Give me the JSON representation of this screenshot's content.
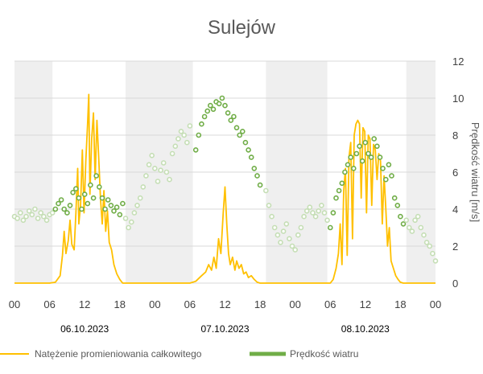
{
  "chart_data": {
    "type": "line",
    "title": "Sulejów",
    "x_tick_labels": [
      "00",
      "06",
      "12",
      "18",
      "00",
      "06",
      "12",
      "18",
      "00",
      "06",
      "12",
      "18",
      "00"
    ],
    "date_labels": [
      "06.10.2023",
      "07.10.2023",
      "08.10.2023"
    ],
    "y2label": "Prędkość wiatru [m/s]",
    "y2lim": [
      0,
      12
    ],
    "y2ticks": [
      "0",
      "2",
      "4",
      "6",
      "8",
      "10",
      "12"
    ],
    "shaded_night_hours": [
      [
        0,
        6.5
      ],
      [
        19,
        30.5
      ],
      [
        43,
        53.5
      ],
      [
        67,
        72
      ]
    ],
    "series": [
      {
        "name": "Natężenie promieniowania całkowitego",
        "kind": "line",
        "color": "#FFC000",
        "axis": "left",
        "ylim": [
          0,
          12
        ],
        "points": [
          [
            0,
            0
          ],
          [
            6,
            0
          ],
          [
            7,
            0.05
          ],
          [
            7.8,
            0.4
          ],
          [
            8.2,
            1.5
          ],
          [
            8.5,
            2.8
          ],
          [
            8.8,
            1.6
          ],
          [
            9.2,
            2.3
          ],
          [
            9.5,
            3.4
          ],
          [
            9.8,
            2.1
          ],
          [
            10.2,
            1.8
          ],
          [
            10.5,
            3.8
          ],
          [
            10.8,
            6.2
          ],
          [
            11,
            3.2
          ],
          [
            11.3,
            4.2
          ],
          [
            11.6,
            7.2
          ],
          [
            11.9,
            3.8
          ],
          [
            12.2,
            6.6
          ],
          [
            12.5,
            8.6
          ],
          [
            12.7,
            10.2
          ],
          [
            12.9,
            4.8
          ],
          [
            13.2,
            7.8
          ],
          [
            13.5,
            9.2
          ],
          [
            13.8,
            5.6
          ],
          [
            14.1,
            8.8
          ],
          [
            14.4,
            6.8
          ],
          [
            14.7,
            4.6
          ],
          [
            15,
            3.2
          ],
          [
            15.3,
            5.0
          ],
          [
            15.6,
            2.8
          ],
          [
            15.9,
            3.9
          ],
          [
            16.2,
            2.2
          ],
          [
            16.6,
            1.8
          ],
          [
            17,
            1.0
          ],
          [
            17.5,
            0.5
          ],
          [
            18,
            0.2
          ],
          [
            18.5,
            0
          ],
          [
            30,
            0
          ],
          [
            31,
            0.1
          ],
          [
            32,
            0.4
          ],
          [
            32.7,
            0.6
          ],
          [
            33.2,
            1.0
          ],
          [
            33.7,
            0.7
          ],
          [
            34.1,
            1.4
          ],
          [
            34.5,
            0.8
          ],
          [
            34.9,
            2.4
          ],
          [
            35.3,
            1.6
          ],
          [
            35.7,
            3.8
          ],
          [
            36,
            5.2
          ],
          [
            36.3,
            3.2
          ],
          [
            36.6,
            1.6
          ],
          [
            36.9,
            1.0
          ],
          [
            37.3,
            1.4
          ],
          [
            37.7,
            0.7
          ],
          [
            38,
            1.2
          ],
          [
            38.4,
            0.8
          ],
          [
            38.8,
            1.0
          ],
          [
            39.2,
            0.5
          ],
          [
            39.6,
            0.6
          ],
          [
            40,
            0.3
          ],
          [
            40.5,
            0.4
          ],
          [
            41,
            0.2
          ],
          [
            41.5,
            0.05
          ],
          [
            42,
            0
          ],
          [
            54,
            0
          ],
          [
            54.5,
            0.2
          ],
          [
            55,
            0.8
          ],
          [
            55.4,
            1.6
          ],
          [
            55.7,
            3.2
          ],
          [
            56,
            1.0
          ],
          [
            56.3,
            5.0
          ],
          [
            56.6,
            6.2
          ],
          [
            56.9,
            1.5
          ],
          [
            57.2,
            6.8
          ],
          [
            57.5,
            7.6
          ],
          [
            57.8,
            2.4
          ],
          [
            58.1,
            8.0
          ],
          [
            58.4,
            8.6
          ],
          [
            58.7,
            8.8
          ],
          [
            59,
            8.6
          ],
          [
            59.3,
            4.6
          ],
          [
            59.6,
            8.4
          ],
          [
            59.9,
            8.2
          ],
          [
            60.2,
            3.8
          ],
          [
            60.5,
            8.0
          ],
          [
            60.8,
            7.8
          ],
          [
            61.1,
            4.2
          ],
          [
            61.4,
            7.5
          ],
          [
            61.7,
            7.2
          ],
          [
            62,
            5.6
          ],
          [
            62.3,
            7.0
          ],
          [
            62.6,
            6.6
          ],
          [
            62.9,
            3.2
          ],
          [
            63.2,
            5.8
          ],
          [
            63.5,
            4.0
          ],
          [
            63.8,
            2.0
          ],
          [
            64.1,
            3.0
          ],
          [
            64.4,
            1.2
          ],
          [
            64.8,
            0.8
          ],
          [
            65.2,
            0.4
          ],
          [
            65.6,
            0.2
          ],
          [
            66,
            0.05
          ],
          [
            66.5,
            0
          ],
          [
            72,
            0
          ]
        ]
      },
      {
        "name": "Prędkość wiatru",
        "kind": "scatter",
        "color": "#70AD47",
        "color_faded": "#C5DEB5",
        "axis": "right",
        "points": [
          [
            0,
            3.6
          ],
          [
            0.5,
            3.5
          ],
          [
            1,
            3.8
          ],
          [
            1.5,
            3.4
          ],
          [
            2,
            3.6
          ],
          [
            2.5,
            3.9
          ],
          [
            3,
            3.7
          ],
          [
            3.5,
            4.0
          ],
          [
            4,
            3.5
          ],
          [
            4.5,
            3.8
          ],
          [
            5,
            3.6
          ],
          [
            5.5,
            3.4
          ],
          [
            6,
            3.7
          ],
          [
            6.5,
            3.8
          ],
          [
            7,
            4.0
          ],
          [
            7.5,
            4.3
          ],
          [
            8,
            4.5
          ],
          [
            8.5,
            4.0
          ],
          [
            9,
            3.8
          ],
          [
            9.5,
            4.2
          ],
          [
            10,
            4.9
          ],
          [
            10.5,
            5.1
          ],
          [
            11,
            4.6
          ],
          [
            11.5,
            4.0
          ],
          [
            12,
            4.8
          ],
          [
            12.5,
            4.3
          ],
          [
            13,
            5.3
          ],
          [
            13.5,
            4.6
          ],
          [
            14,
            5.8
          ],
          [
            14.5,
            5.2
          ],
          [
            15,
            4.6
          ],
          [
            15.5,
            4.0
          ],
          [
            16,
            4.5
          ],
          [
            16.5,
            4.2
          ],
          [
            17,
            3.9
          ],
          [
            17.5,
            4.1
          ],
          [
            18,
            3.7
          ],
          [
            18.5,
            4.3
          ],
          [
            19,
            3.5
          ],
          [
            19.5,
            3.0
          ],
          [
            20,
            3.3
          ],
          [
            20.5,
            3.8
          ],
          [
            21,
            4.2
          ],
          [
            21.5,
            4.6
          ],
          [
            22,
            5.2
          ],
          [
            22.5,
            5.8
          ],
          [
            23,
            6.4
          ],
          [
            23.5,
            6.9
          ],
          [
            24,
            6.2
          ],
          [
            24.5,
            5.5
          ],
          [
            25,
            6.1
          ],
          [
            25.5,
            6.5
          ],
          [
            26,
            6.0
          ],
          [
            26.5,
            5.6
          ],
          [
            27,
            7.0
          ],
          [
            27.5,
            7.4
          ],
          [
            28,
            7.8
          ],
          [
            28.5,
            8.2
          ],
          [
            29,
            8.0
          ],
          [
            29.5,
            7.6
          ],
          [
            30,
            8.5
          ],
          [
            31,
            7.2
          ],
          [
            31.5,
            8.0
          ],
          [
            32,
            8.6
          ],
          [
            32.5,
            9.0
          ],
          [
            33,
            9.3
          ],
          [
            33.5,
            9.6
          ],
          [
            34,
            9.4
          ],
          [
            34.5,
            9.8
          ],
          [
            35,
            9.7
          ],
          [
            35.5,
            10.0
          ],
          [
            36,
            9.6
          ],
          [
            36.5,
            9.2
          ],
          [
            37,
            8.8
          ],
          [
            37.5,
            9.0
          ],
          [
            38,
            8.4
          ],
          [
            38.5,
            8.0
          ],
          [
            39,
            8.2
          ],
          [
            39.5,
            7.6
          ],
          [
            40,
            7.2
          ],
          [
            40.5,
            6.8
          ],
          [
            41,
            6.2
          ],
          [
            41.5,
            5.8
          ],
          [
            42,
            5.3
          ],
          [
            43,
            5.0
          ],
          [
            43.5,
            4.2
          ],
          [
            44,
            3.6
          ],
          [
            44.5,
            3.0
          ],
          [
            45,
            2.6
          ],
          [
            45.5,
            2.2
          ],
          [
            46,
            2.8
          ],
          [
            46.5,
            3.2
          ],
          [
            47,
            2.4
          ],
          [
            47.5,
            2.0
          ],
          [
            48,
            1.8
          ],
          [
            48.5,
            2.6
          ],
          [
            49,
            3.0
          ],
          [
            49.5,
            3.6
          ],
          [
            50,
            3.9
          ],
          [
            50.5,
            4.1
          ],
          [
            51,
            3.8
          ],
          [
            51.5,
            3.6
          ],
          [
            52,
            3.9
          ],
          [
            52.5,
            4.2
          ],
          [
            53,
            3.8
          ],
          [
            53.5,
            3.4
          ],
          [
            54,
            3.0
          ],
          [
            54.5,
            3.8
          ],
          [
            55,
            4.6
          ],
          [
            55.5,
            5.0
          ],
          [
            56,
            5.4
          ],
          [
            56.5,
            6.0
          ],
          [
            57,
            6.4
          ],
          [
            57.5,
            6.8
          ],
          [
            58,
            6.2
          ],
          [
            58.5,
            7.0
          ],
          [
            59,
            7.4
          ],
          [
            59.5,
            6.6
          ],
          [
            60,
            7.6
          ],
          [
            60.5,
            7.0
          ],
          [
            61,
            6.8
          ],
          [
            61.5,
            7.8
          ],
          [
            62,
            7.4
          ],
          [
            62.5,
            6.8
          ],
          [
            63,
            6.2
          ],
          [
            63.5,
            5.6
          ],
          [
            64,
            6.4
          ],
          [
            64.5,
            5.8
          ],
          [
            65,
            4.6
          ],
          [
            65.5,
            4.2
          ],
          [
            66,
            3.6
          ],
          [
            66.5,
            3.2
          ],
          [
            67,
            3.4
          ],
          [
            67.5,
            3.0
          ],
          [
            68,
            2.8
          ],
          [
            68.5,
            3.4
          ],
          [
            69,
            3.6
          ],
          [
            69.5,
            3.0
          ],
          [
            70,
            2.6
          ],
          [
            70.5,
            2.2
          ],
          [
            71,
            2.0
          ],
          [
            71.5,
            1.6
          ],
          [
            72,
            1.2
          ]
        ]
      }
    ]
  }
}
